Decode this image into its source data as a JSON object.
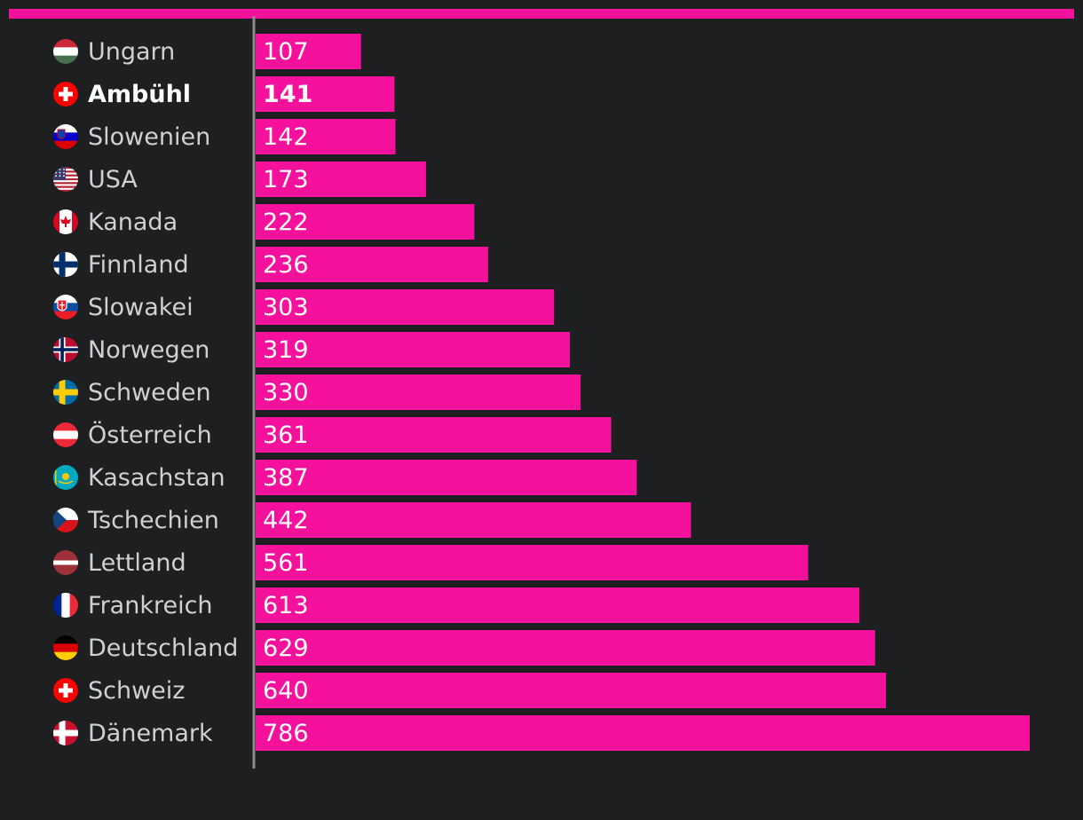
{
  "colors": {
    "background": "#1e1f21",
    "accent": "#f5119b",
    "label": "#d0d0d0",
    "label_highlight": "#ffffff",
    "axis": "#8a8a8a",
    "value_text": "#ffffff"
  },
  "chart_data": {
    "type": "bar",
    "orientation": "horizontal",
    "title": "",
    "xlabel": "",
    "ylabel": "",
    "xlim": [
      0,
      786
    ],
    "grid": false,
    "legend": "none",
    "highlight_category": "Ambühl",
    "categories": [
      "Ungarn",
      "Ambühl",
      "Slowenien",
      "USA",
      "Kanada",
      "Finnland",
      "Slowakei",
      "Norwegen",
      "Schweden",
      "Österreich",
      "Kasachstan",
      "Tschechien",
      "Lettland",
      "Frankreich",
      "Deutschland",
      "Schweiz",
      "Dänemark"
    ],
    "flag_icons": [
      "hungary-flag-icon",
      "switzerland-flag-icon",
      "slovenia-flag-icon",
      "usa-flag-icon",
      "canada-flag-icon",
      "finland-flag-icon",
      "slovakia-flag-icon",
      "norway-flag-icon",
      "sweden-flag-icon",
      "austria-flag-icon",
      "kazakhstan-flag-icon",
      "czechia-flag-icon",
      "latvia-flag-icon",
      "france-flag-icon",
      "germany-flag-icon",
      "switzerland-flag-icon",
      "denmark-flag-icon"
    ],
    "values": [
      107,
      141,
      142,
      173,
      222,
      236,
      303,
      319,
      330,
      361,
      387,
      442,
      561,
      613,
      629,
      640,
      786
    ]
  }
}
